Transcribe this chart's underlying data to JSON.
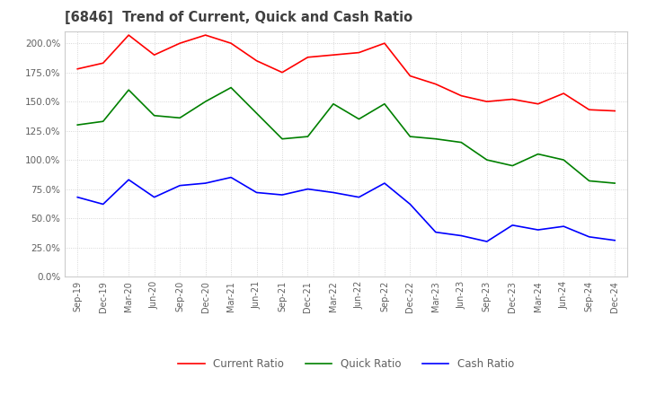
{
  "title": "[6846]  Trend of Current, Quick and Cash Ratio",
  "x_labels": [
    "Sep-19",
    "Dec-19",
    "Mar-20",
    "Jun-20",
    "Sep-20",
    "Dec-20",
    "Mar-21",
    "Jun-21",
    "Sep-21",
    "Dec-21",
    "Mar-22",
    "Jun-22",
    "Sep-22",
    "Dec-22",
    "Mar-23",
    "Jun-23",
    "Sep-23",
    "Dec-23",
    "Mar-24",
    "Jun-24",
    "Sep-24",
    "Dec-24"
  ],
  "current_ratio": [
    178,
    183,
    207,
    190,
    200,
    207,
    200,
    185,
    175,
    188,
    190,
    192,
    200,
    172,
    165,
    155,
    150,
    152,
    148,
    157,
    143,
    142
  ],
  "quick_ratio": [
    130,
    133,
    160,
    138,
    136,
    150,
    162,
    140,
    118,
    120,
    148,
    135,
    148,
    120,
    118,
    115,
    100,
    95,
    105,
    100,
    82,
    80
  ],
  "cash_ratio": [
    68,
    62,
    83,
    68,
    78,
    80,
    85,
    72,
    70,
    75,
    72,
    68,
    80,
    62,
    38,
    35,
    30,
    44,
    40,
    43,
    34,
    31
  ],
  "ylim": [
    0,
    210
  ],
  "yticks": [
    0,
    25,
    50,
    75,
    100,
    125,
    150,
    175,
    200
  ],
  "current_color": "#ff0000",
  "quick_color": "#008000",
  "cash_color": "#0000ff",
  "background_color": "#ffffff",
  "grid_color": "#cccccc",
  "title_color": "#404040",
  "tick_color": "#606060"
}
